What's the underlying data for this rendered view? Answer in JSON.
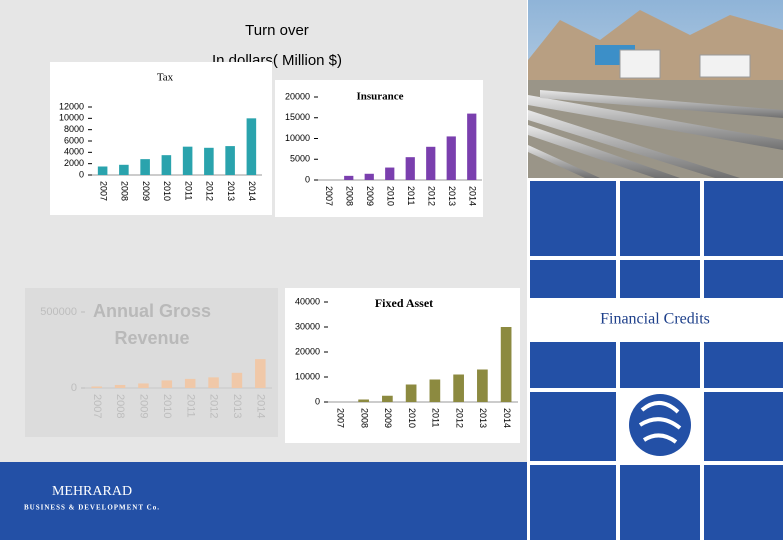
{
  "heading": "Turn over",
  "subheading": "In dollars( Million $)",
  "side_label": "Financial  Credits",
  "company": {
    "name": "MEHRARAD",
    "tagline": "BUSINESS & DEVELOPMENT Co."
  },
  "chart_data": [
    {
      "type": "bar",
      "title": "Tax",
      "categories": [
        "2007",
        "2008",
        "2009",
        "2010",
        "2011",
        "2012",
        "2013",
        "2014"
      ],
      "values": [
        1500,
        1800,
        2800,
        3500,
        5000,
        4800,
        5100,
        10000
      ],
      "color": "#2aa3ad",
      "ylim": [
        0,
        12000
      ],
      "yticks": [
        0,
        2000,
        4000,
        6000,
        8000,
        10000,
        12000
      ]
    },
    {
      "type": "bar",
      "title": "Insurance",
      "categories": [
        "2007",
        "2008",
        "2009",
        "2010",
        "2011",
        "2012",
        "2013",
        "2014"
      ],
      "values": [
        0,
        1000,
        1500,
        3000,
        5500,
        8000,
        10500,
        16000
      ],
      "color": "#7a3fae",
      "ylim": [
        0,
        20000
      ],
      "yticks": [
        0,
        5000,
        10000,
        15000,
        20000
      ]
    },
    {
      "type": "bar",
      "title": "Annual Gross Revenue",
      "categories": [
        "2007",
        "2008",
        "2009",
        "2010",
        "2011",
        "2012",
        "2013",
        "2014"
      ],
      "values": [
        10000,
        20000,
        30000,
        50000,
        60000,
        70000,
        100000,
        190000
      ],
      "color": "#f0c8a8",
      "ylim": [
        0,
        500000
      ],
      "yticks": [
        0,
        500000
      ]
    },
    {
      "type": "bar",
      "title": "Fixed Asset",
      "categories": [
        "2007",
        "2008",
        "2009",
        "2010",
        "2011",
        "2012",
        "2013",
        "2014"
      ],
      "values": [
        0,
        1000,
        2500,
        7000,
        9000,
        11000,
        13000,
        30000
      ],
      "color": "#8c8a40",
      "ylim": [
        0,
        40000
      ],
      "yticks": [
        0,
        10000,
        20000,
        30000,
        40000
      ]
    }
  ]
}
